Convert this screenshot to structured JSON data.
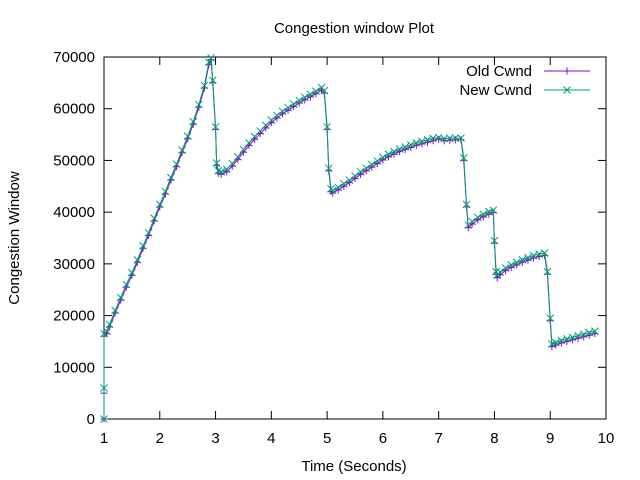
{
  "chart_data": {
    "type": "line",
    "title": "Congestion window Plot",
    "xlabel": "Time (Seconds)",
    "ylabel": "Congestion Window",
    "xlim": [
      1,
      10
    ],
    "ylim": [
      0,
      70000
    ],
    "xticks": [
      "1",
      "2",
      "3",
      "4",
      "5",
      "6",
      "7",
      "8",
      "9",
      "10"
    ],
    "yticks": [
      "0",
      "10000",
      "20000",
      "30000",
      "40000",
      "50000",
      "60000",
      "70000"
    ],
    "grid": false,
    "legend_position": "top-right",
    "series": [
      {
        "name": "Old Cwnd",
        "color": "#9400d3",
        "marker": "plus",
        "points": [
          [
            1.0,
            0
          ],
          [
            1.0,
            5000
          ],
          [
            1.0,
            16000
          ],
          [
            1.05,
            16500
          ],
          [
            1.1,
            17800
          ],
          [
            1.2,
            20500
          ],
          [
            1.3,
            23000
          ],
          [
            1.4,
            25500
          ],
          [
            1.5,
            27800
          ],
          [
            1.6,
            30300
          ],
          [
            1.7,
            33000
          ],
          [
            1.8,
            35500
          ],
          [
            1.9,
            38300
          ],
          [
            2.0,
            41000
          ],
          [
            2.1,
            43500
          ],
          [
            2.2,
            46200
          ],
          [
            2.3,
            48800
          ],
          [
            2.4,
            51500
          ],
          [
            2.5,
            54200
          ],
          [
            2.6,
            57000
          ],
          [
            2.7,
            60300
          ],
          [
            2.8,
            64000
          ],
          [
            2.88,
            68500
          ],
          [
            2.92,
            69500
          ],
          [
            2.95,
            65000
          ],
          [
            3.0,
            56000
          ],
          [
            3.02,
            49000
          ],
          [
            3.05,
            47500
          ],
          [
            3.1,
            47300
          ],
          [
            3.2,
            47800
          ],
          [
            3.3,
            48900
          ],
          [
            3.4,
            50200
          ],
          [
            3.5,
            51600
          ],
          [
            3.6,
            52900
          ],
          [
            3.7,
            54100
          ],
          [
            3.8,
            55200
          ],
          [
            3.9,
            56300
          ],
          [
            4.0,
            57300
          ],
          [
            4.1,
            58200
          ],
          [
            4.2,
            59000
          ],
          [
            4.3,
            59700
          ],
          [
            4.4,
            60400
          ],
          [
            4.5,
            61100
          ],
          [
            4.6,
            61700
          ],
          [
            4.7,
            62300
          ],
          [
            4.8,
            62900
          ],
          [
            4.9,
            63600
          ],
          [
            4.95,
            63000
          ],
          [
            5.0,
            56000
          ],
          [
            5.03,
            48000
          ],
          [
            5.07,
            44000
          ],
          [
            5.1,
            43700
          ],
          [
            5.2,
            44300
          ],
          [
            5.3,
            45000
          ],
          [
            5.4,
            45700
          ],
          [
            5.5,
            46500
          ],
          [
            5.6,
            47300
          ],
          [
            5.7,
            48000
          ],
          [
            5.8,
            48700
          ],
          [
            5.9,
            49400
          ],
          [
            6.0,
            50100
          ],
          [
            6.1,
            50700
          ],
          [
            6.2,
            51200
          ],
          [
            6.3,
            51700
          ],
          [
            6.4,
            52100
          ],
          [
            6.5,
            52500
          ],
          [
            6.6,
            52900
          ],
          [
            6.7,
            53200
          ],
          [
            6.8,
            53500
          ],
          [
            6.9,
            53800
          ],
          [
            7.0,
            54100
          ],
          [
            7.1,
            53800
          ],
          [
            7.2,
            53900
          ],
          [
            7.3,
            54000
          ],
          [
            7.4,
            54000
          ],
          [
            7.45,
            50000
          ],
          [
            7.5,
            41000
          ],
          [
            7.53,
            37000
          ],
          [
            7.6,
            37700
          ],
          [
            7.7,
            38500
          ],
          [
            7.8,
            39100
          ],
          [
            7.9,
            39600
          ],
          [
            7.98,
            39900
          ],
          [
            8.0,
            34000
          ],
          [
            8.03,
            28000
          ],
          [
            8.05,
            27300
          ],
          [
            8.1,
            27900
          ],
          [
            8.2,
            28700
          ],
          [
            8.3,
            29300
          ],
          [
            8.4,
            29800
          ],
          [
            8.5,
            30300
          ],
          [
            8.6,
            30700
          ],
          [
            8.7,
            31100
          ],
          [
            8.8,
            31400
          ],
          [
            8.9,
            31600
          ],
          [
            8.95,
            28000
          ],
          [
            9.0,
            19000
          ],
          [
            9.03,
            14000
          ],
          [
            9.1,
            14300
          ],
          [
            9.2,
            14700
          ],
          [
            9.3,
            15000
          ],
          [
            9.4,
            15300
          ],
          [
            9.5,
            15600
          ],
          [
            9.6,
            15900
          ],
          [
            9.7,
            16200
          ],
          [
            9.8,
            16500
          ]
        ]
      },
      {
        "name": "New Cwnd",
        "color": "#009e73",
        "marker": "cross",
        "points": [
          [
            1.0,
            0
          ],
          [
            1.0,
            6000
          ],
          [
            1.0,
            16500
          ],
          [
            1.05,
            17000
          ],
          [
            1.1,
            18300
          ],
          [
            1.2,
            21000
          ],
          [
            1.3,
            23500
          ],
          [
            1.4,
            26000
          ],
          [
            1.5,
            28300
          ],
          [
            1.6,
            30800
          ],
          [
            1.7,
            33500
          ],
          [
            1.8,
            36000
          ],
          [
            1.9,
            38800
          ],
          [
            2.0,
            41500
          ],
          [
            2.1,
            44000
          ],
          [
            2.2,
            46700
          ],
          [
            2.3,
            49300
          ],
          [
            2.4,
            52000
          ],
          [
            2.5,
            54700
          ],
          [
            2.6,
            57500
          ],
          [
            2.7,
            60800
          ],
          [
            2.8,
            64500
          ],
          [
            2.88,
            69000
          ],
          [
            2.92,
            69800
          ],
          [
            2.95,
            65500
          ],
          [
            3.0,
            56500
          ],
          [
            3.02,
            49500
          ],
          [
            3.05,
            48000
          ],
          [
            3.1,
            47800
          ],
          [
            3.2,
            48300
          ],
          [
            3.3,
            49400
          ],
          [
            3.4,
            50700
          ],
          [
            3.5,
            52100
          ],
          [
            3.6,
            53400
          ],
          [
            3.7,
            54600
          ],
          [
            3.8,
            55700
          ],
          [
            3.9,
            56800
          ],
          [
            4.0,
            57800
          ],
          [
            4.1,
            58700
          ],
          [
            4.2,
            59500
          ],
          [
            4.3,
            60200
          ],
          [
            4.4,
            60900
          ],
          [
            4.5,
            61600
          ],
          [
            4.6,
            62200
          ],
          [
            4.7,
            62800
          ],
          [
            4.8,
            63400
          ],
          [
            4.9,
            64100
          ],
          [
            4.95,
            63500
          ],
          [
            5.0,
            56500
          ],
          [
            5.03,
            48500
          ],
          [
            5.07,
            44500
          ],
          [
            5.1,
            44200
          ],
          [
            5.2,
            44800
          ],
          [
            5.3,
            45500
          ],
          [
            5.4,
            46200
          ],
          [
            5.5,
            47000
          ],
          [
            5.6,
            47800
          ],
          [
            5.7,
            48500
          ],
          [
            5.8,
            49200
          ],
          [
            5.9,
            49900
          ],
          [
            6.0,
            50600
          ],
          [
            6.1,
            51200
          ],
          [
            6.2,
            51700
          ],
          [
            6.3,
            52200
          ],
          [
            6.4,
            52600
          ],
          [
            6.5,
            53000
          ],
          [
            6.6,
            53400
          ],
          [
            6.7,
            53700
          ],
          [
            6.8,
            54000
          ],
          [
            6.9,
            54300
          ],
          [
            7.0,
            54400
          ],
          [
            7.1,
            54200
          ],
          [
            7.2,
            54300
          ],
          [
            7.3,
            54300
          ],
          [
            7.4,
            54300
          ],
          [
            7.45,
            50500
          ],
          [
            7.5,
            41500
          ],
          [
            7.53,
            37500
          ],
          [
            7.6,
            38200
          ],
          [
            7.7,
            39000
          ],
          [
            7.8,
            39600
          ],
          [
            7.9,
            40100
          ],
          [
            7.98,
            40400
          ],
          [
            8.0,
            34500
          ],
          [
            8.03,
            28500
          ],
          [
            8.05,
            27800
          ],
          [
            8.1,
            28400
          ],
          [
            8.2,
            29200
          ],
          [
            8.3,
            29800
          ],
          [
            8.4,
            30300
          ],
          [
            8.5,
            30800
          ],
          [
            8.6,
            31200
          ],
          [
            8.7,
            31600
          ],
          [
            8.8,
            31900
          ],
          [
            8.9,
            32100
          ],
          [
            8.95,
            28500
          ],
          [
            9.0,
            19500
          ],
          [
            9.03,
            14500
          ],
          [
            9.1,
            14800
          ],
          [
            9.2,
            15200
          ],
          [
            9.3,
            15500
          ],
          [
            9.4,
            15800
          ],
          [
            9.5,
            16100
          ],
          [
            9.6,
            16400
          ],
          [
            9.7,
            16700
          ],
          [
            9.8,
            17000
          ]
        ]
      }
    ]
  }
}
